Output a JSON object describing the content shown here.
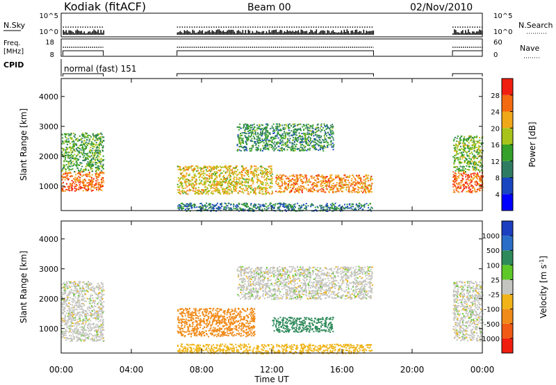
{
  "header": {
    "station": "Kodiak (fitACF)",
    "beam": "Beam 00",
    "date": "02/Nov/2010"
  },
  "strips": {
    "nsky": {
      "label": "N.Sky",
      "ticks": [
        "10^5",
        "10^0"
      ],
      "right_ticks": [
        "10^5",
        "10^0"
      ],
      "right_label": "N.Search"
    },
    "freq": {
      "label_line1": "Freq.",
      "label_line2": "[MHz]",
      "ticks": [
        "18",
        "8"
      ],
      "right_ticks": [
        "60",
        "0"
      ],
      "right_label": "Nave"
    },
    "cpid": {
      "label": "CPID",
      "mode": "normal (fast) 151"
    }
  },
  "chart_data": [
    {
      "type": "heatmap",
      "parameter": "Power",
      "ylabel": "Slant Range [km]",
      "xlabel": "Time UT",
      "xlim": [
        "00:00",
        "24:00"
      ],
      "ylim": [
        180,
        4600
      ],
      "x_ticks": [
        "00:00",
        "04:00",
        "08:00",
        "12:00",
        "16:00",
        "20:00",
        "00:00"
      ],
      "y_ticks": [
        1000,
        2000,
        3000,
        4000
      ],
      "colorbar": {
        "label": "Power [dB]",
        "ticks": [
          "4",
          "8",
          "12",
          "16",
          "20",
          "24",
          "28"
        ],
        "min": 0,
        "max": 32,
        "colors": [
          "#0000ff",
          "#1846c0",
          "#2e7d62",
          "#35a02a",
          "#a8c41a",
          "#f0a818",
          "#f46a10",
          "#f01e10"
        ]
      },
      "data_gaps_hours": [
        [
          2.4,
          6.5
        ],
        [
          17.8,
          22.3
        ]
      ],
      "echo_regions": [
        {
          "t0": 0.0,
          "t1": 2.4,
          "r0": 850,
          "r1": 1500,
          "value": 26
        },
        {
          "t0": 0.0,
          "t1": 2.4,
          "r0": 1500,
          "r1": 2800,
          "value": 14
        },
        {
          "t0": 6.6,
          "t1": 12.0,
          "r0": 750,
          "r1": 1700,
          "value": 20
        },
        {
          "t0": 10.0,
          "t1": 15.5,
          "r0": 2200,
          "r1": 3100,
          "value": 12
        },
        {
          "t0": 12.2,
          "t1": 17.7,
          "r0": 800,
          "r1": 1400,
          "value": 24
        },
        {
          "t0": 6.6,
          "t1": 17.7,
          "r0": 180,
          "r1": 450,
          "value": 10
        },
        {
          "t0": 22.3,
          "t1": 24.0,
          "r0": 800,
          "r1": 1500,
          "value": 26
        },
        {
          "t0": 22.3,
          "t1": 24.0,
          "r0": 1500,
          "r1": 2700,
          "value": 16
        }
      ]
    },
    {
      "type": "heatmap",
      "parameter": "Velocity",
      "ylabel": "Slant Range [km]",
      "xlabel": "Time UT",
      "xlim": [
        "00:00",
        "24:00"
      ],
      "ylim": [
        180,
        4600
      ],
      "x_ticks": [
        "00:00",
        "04:00",
        "08:00",
        "12:00",
        "16:00",
        "20:00",
        "00:00"
      ],
      "y_ticks": [
        1000,
        2000,
        3000,
        4000
      ],
      "colorbar": {
        "label": "Velocity [m s^-1]",
        "ticks": [
          "1000",
          "500",
          "100",
          "25",
          "-25",
          "-100",
          "-500",
          "-1000"
        ],
        "colors": [
          "#1c3ec0",
          "#2a6ec8",
          "#2e8a5a",
          "#5ec828",
          "#c4c4c0",
          "#f0b418",
          "#f08a18",
          "#f05a14",
          "#f01e10"
        ]
      },
      "data_gaps_hours": [
        [
          2.4,
          6.5
        ],
        [
          17.8,
          22.3
        ]
      ],
      "echo_regions": [
        {
          "t0": 0.0,
          "t1": 2.4,
          "r0": 600,
          "r1": 2600,
          "value": 0
        },
        {
          "t0": 6.6,
          "t1": 11.0,
          "r0": 750,
          "r1": 1700,
          "value": -150
        },
        {
          "t0": 10.0,
          "t1": 17.7,
          "r0": 2000,
          "r1": 3100,
          "value": 0
        },
        {
          "t0": 12.0,
          "t1": 15.5,
          "r0": 900,
          "r1": 1400,
          "value": 150
        },
        {
          "t0": 6.6,
          "t1": 17.7,
          "r0": 180,
          "r1": 500,
          "value": -60
        },
        {
          "t0": 22.3,
          "t1": 24.0,
          "r0": 600,
          "r1": 2600,
          "value": 0
        }
      ]
    }
  ]
}
